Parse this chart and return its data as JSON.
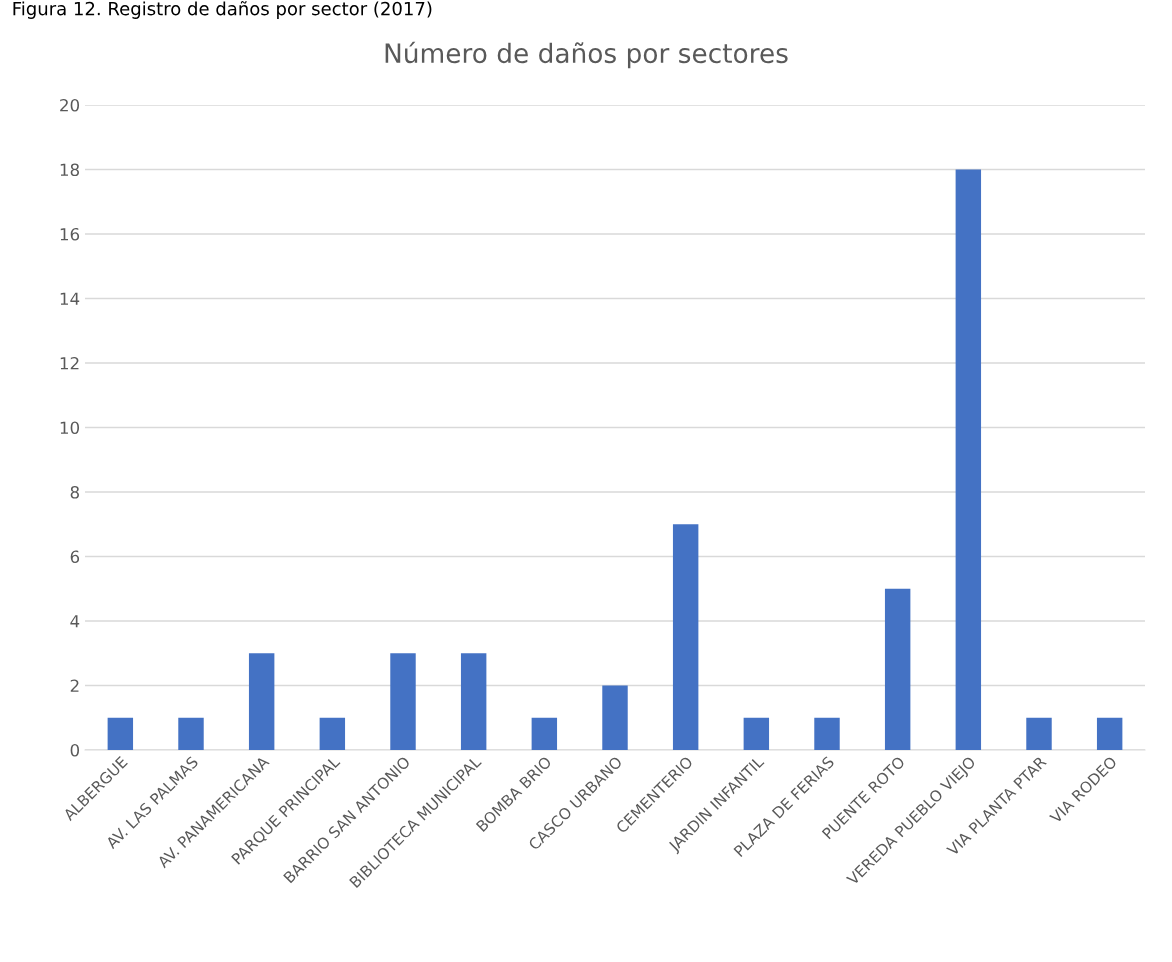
{
  "chart_data": {
    "type": "bar",
    "title": "Número de daños por sectores",
    "annotations": [
      "Figura 12. Registro de daños por sector (2017)"
    ],
    "categories": [
      "ALBERGUE",
      "AV. LAS PALMAS",
      "AV. PANAMERICANA",
      "PARQUE PRINCIPAL",
      "BARRIO SAN ANTONIO",
      "BIBLIOTECA MUNICIPAL",
      "BOMBA BRIO",
      "CASCO URBANO",
      "CEMENTERIO",
      "JARDIN INFANTIL",
      "PLAZA DE FERIAS",
      "PUENTE ROTO",
      "VEREDA PUEBLO VIEJO",
      "VIA PLANTA PTAR",
      "VIA RODEO"
    ],
    "values": [
      1,
      1,
      3,
      1,
      3,
      3,
      1,
      2,
      7,
      1,
      1,
      5,
      18,
      1,
      1
    ],
    "color": "#4472c4",
    "ylim": [
      0,
      20
    ],
    "yticks": [
      0,
      2,
      4,
      6,
      8,
      10,
      12,
      14,
      16,
      18,
      20
    ],
    "grid": "y"
  }
}
